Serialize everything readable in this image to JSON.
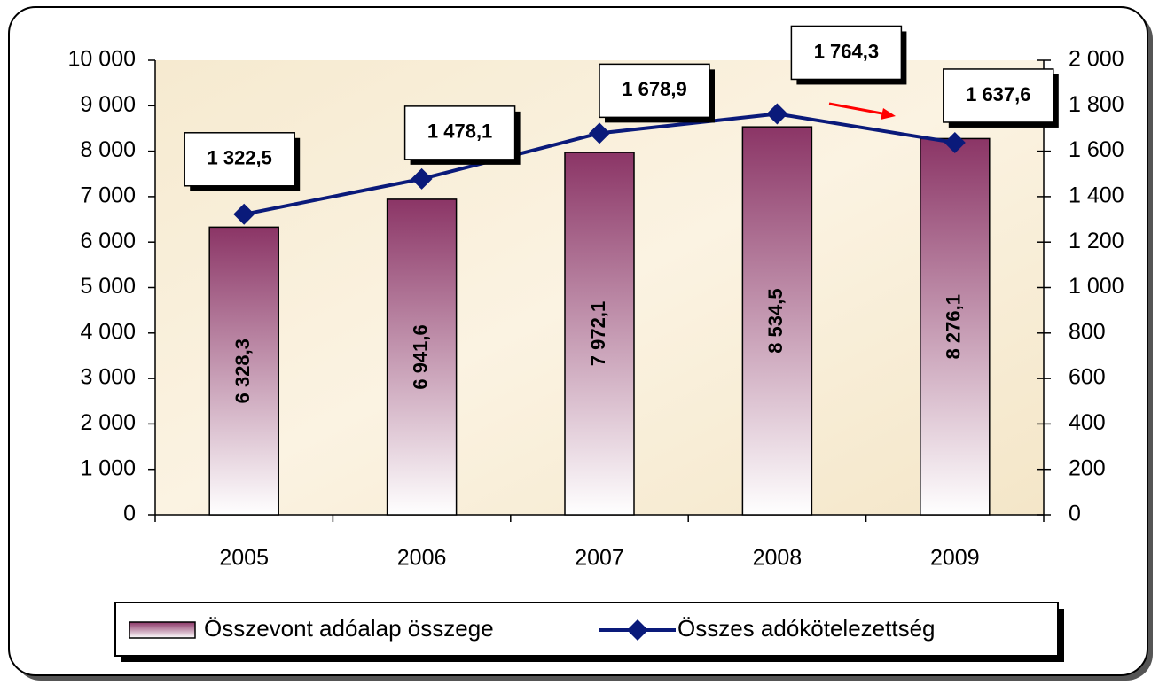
{
  "chart_data": {
    "type": "bar",
    "categories": [
      "2005",
      "2006",
      "2007",
      "2008",
      "2009"
    ],
    "series": [
      {
        "name": "Összevont adóalap összege",
        "color": "#8b3566",
        "type": "bar",
        "axis": "y",
        "values": [
          6328.3,
          6941.6,
          7972.1,
          8534.5,
          8276.1
        ],
        "value_labels": [
          "6 328,3",
          "6 941,6",
          "7 972,1",
          "8 534,5",
          "8 276,1"
        ]
      },
      {
        "name": "Összes adókötelezettség",
        "color": "#0a1a7a",
        "type": "line",
        "axis": "y2",
        "values": [
          1322.5,
          1478.1,
          1678.9,
          1764.3,
          1637.6
        ],
        "value_labels": [
          "1 322,5",
          "1 478,1",
          "1 678,9",
          "1 764,3",
          "1 637,6"
        ]
      }
    ],
    "ylim": [
      0,
      10000
    ],
    "yticks": [
      0,
      {
        "value": 1000,
        "label": "1 000"
      },
      {
        "value": 2000,
        "label": "2 000"
      },
      {
        "value": 3000,
        "label": "3 000"
      },
      {
        "value": 4000,
        "label": "4 000"
      },
      {
        "value": 5000,
        "label": "5 000"
      },
      {
        "value": 6000,
        "label": "6 000"
      },
      {
        "value": 7000,
        "label": "7 000"
      },
      {
        "value": 8000,
        "label": "8 000"
      },
      {
        "value": 9000,
        "label": "9 000"
      },
      {
        "value": 10000,
        "label": "10 000"
      }
    ],
    "y2lim": [
      0,
      2000
    ],
    "y2ticks": [
      0,
      200,
      400,
      600,
      800,
      {
        "value": 1000,
        "label": "1 000"
      },
      {
        "value": 1200,
        "label": "1 200"
      },
      {
        "value": 1400,
        "label": "1 400"
      },
      {
        "value": 1600,
        "label": "1 600"
      },
      {
        "value": 1800,
        "label": "1 800"
      },
      {
        "value": 2000,
        "label": "2 000"
      }
    ],
    "legend": "bottom"
  }
}
